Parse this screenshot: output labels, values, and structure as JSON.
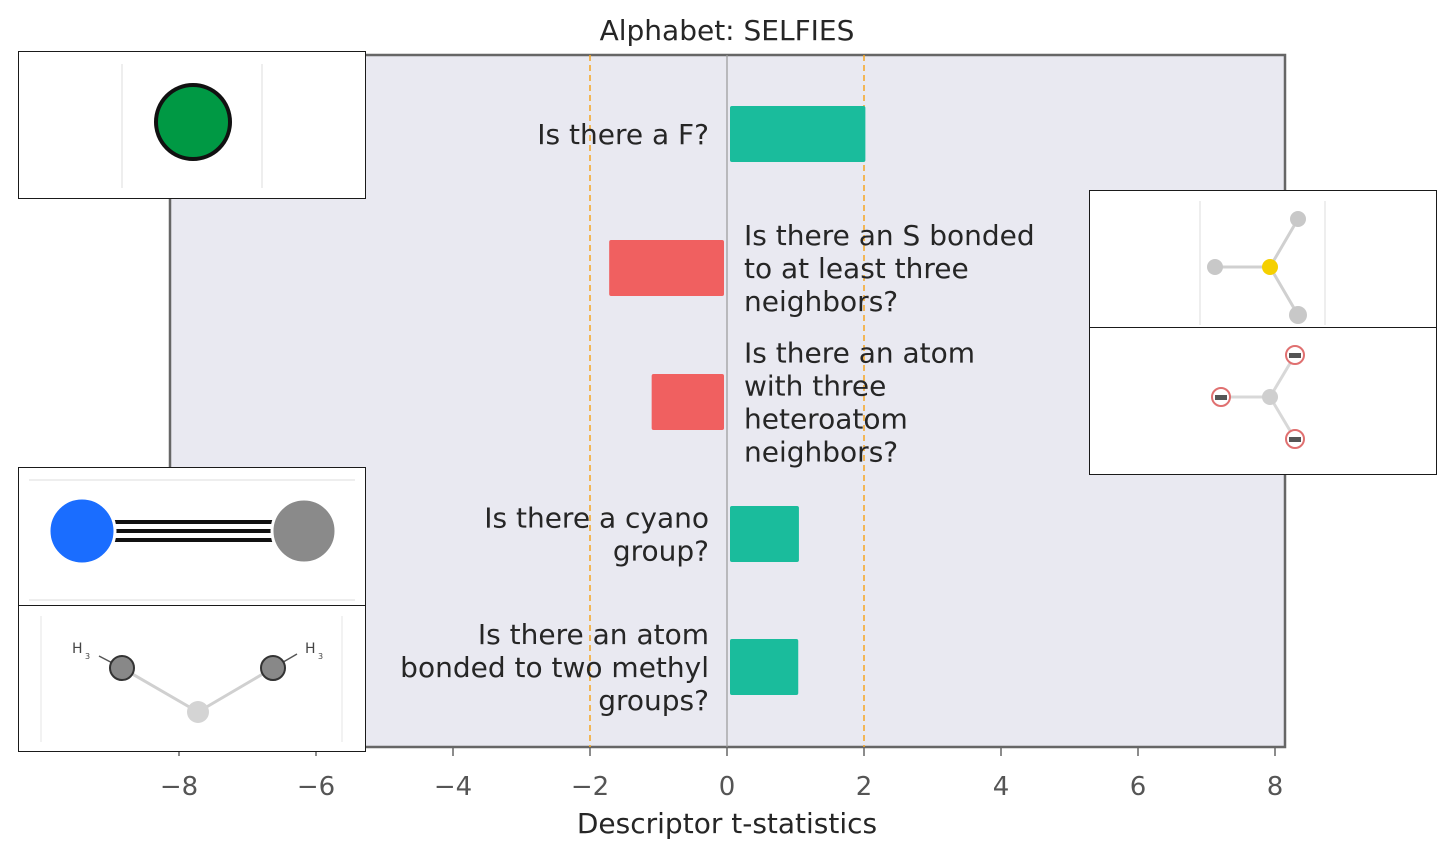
{
  "chart_data": {
    "type": "bar",
    "orientation": "horizontal",
    "title": "Alphabet: SELFIES",
    "xlabel": "Descriptor t-statistics",
    "xlim": [
      -10.2,
      8.1
    ],
    "xticks": [
      -8,
      -6,
      -4,
      -2,
      0,
      2,
      4,
      6,
      8
    ],
    "xtick_labels": [
      "−8",
      "−6",
      "−4",
      "−2",
      "0",
      "2",
      "4",
      "6",
      "8"
    ],
    "threshold_lines": [
      -2,
      2
    ],
    "categories": [
      "Is there a F?",
      "Is there an S bonded\nto at least three\nneighbors?",
      "Is there an atom\nwith three\nheteroatom\nneighbors?",
      "Is there a cyano\ngroup?",
      "Is there an atom\nbonded to two methyl\ngroups?"
    ],
    "values": [
      2.02,
      -1.72,
      -1.1,
      1.05,
      1.04
    ],
    "grid": false,
    "colors": {
      "positive": "#1abc9c",
      "negative": "#f06060",
      "threshold": "#f5a623",
      "zero_line": "#999999",
      "axes_bg": "#e9e9f1",
      "spine": "#666666",
      "text": "#262626",
      "tick_text": "#555555"
    }
  }
}
